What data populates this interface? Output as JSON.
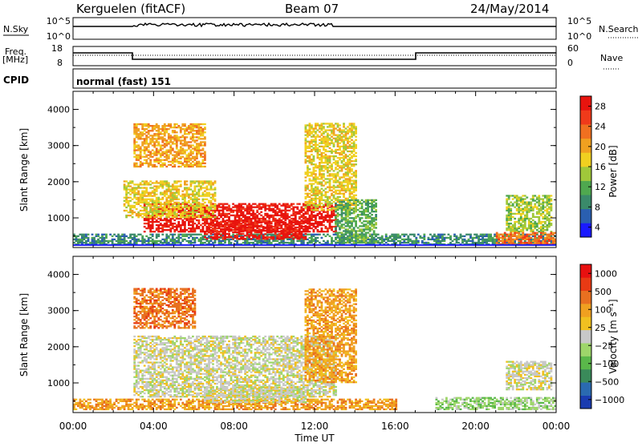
{
  "header": {
    "station": "Kerguelen (fitACF)",
    "beam": "Beam 07",
    "date": "24/May/2014"
  },
  "strip_panels": {
    "nsky_label": "N.Sky",
    "nsky_ticks": [
      "10^5",
      "10^0"
    ],
    "nsearch_label": "N.Search",
    "nsearch_ticks": [
      "10^5",
      "10^0"
    ],
    "freq_label_1": "Freq.",
    "freq_label_2": "[MHz]",
    "freq_ticks": [
      "18",
      "8"
    ],
    "nave_label": "Nave",
    "nave_ticks": [
      "60",
      "0"
    ],
    "cpid_label": "CPID",
    "cpid_value": "normal (fast) 151"
  },
  "colors": {
    "power_scale": [
      "#1a1aff",
      "#2a5fb0",
      "#3a8a6a",
      "#4fa84f",
      "#a0c83a",
      "#f0d020",
      "#f0a020",
      "#f07020",
      "#f03a1a",
      "#e8140e"
    ],
    "velocity_scale": [
      "#1a3cb0",
      "#2a6ab0",
      "#3a8a5a",
      "#5ab84a",
      "#9ed66a",
      "#c8c8c8",
      "#f0c020",
      "#f0a020",
      "#e87020",
      "#e83a14",
      "#e81010"
    ]
  },
  "chart_data": [
    {
      "type": "heatmap",
      "name": "power",
      "ylabel": "Slant Range [km]",
      "xlabel": "Time UT",
      "x_ticks": [
        "00:00",
        "04:00",
        "08:00",
        "12:00",
        "16:00",
        "20:00",
        "00:00"
      ],
      "y_ticks": [
        "1000",
        "2000",
        "3000",
        "4000"
      ],
      "ylim": [
        180,
        4500
      ],
      "xlim": [
        0,
        24
      ],
      "colorbar_label": "Power [dB]",
      "colorbar_ticks": [
        "28",
        "24",
        "20",
        "16",
        "12",
        "8",
        "4"
      ],
      "regions": [
        {
          "t0": 0.0,
          "t1": 24.0,
          "r0": 250,
          "r1": 550,
          "level": 2
        },
        {
          "t0": 3.5,
          "t1": 13.0,
          "r0": 600,
          "r1": 1400,
          "level": 9
        },
        {
          "t0": 6.5,
          "t1": 11.5,
          "r0": 400,
          "r1": 900,
          "level": 9
        },
        {
          "t0": 2.5,
          "t1": 7.0,
          "r0": 1000,
          "r1": 2000,
          "level": 5
        },
        {
          "t0": 3.0,
          "t1": 6.5,
          "r0": 2400,
          "r1": 3600,
          "level": 6
        },
        {
          "t0": 11.5,
          "t1": 14.0,
          "r0": 1200,
          "r1": 3600,
          "level": 5
        },
        {
          "t0": 13.0,
          "t1": 15.0,
          "r0": 300,
          "r1": 1500,
          "level": 3
        },
        {
          "t0": 21.5,
          "t1": 23.8,
          "r0": 600,
          "r1": 1600,
          "level": 4
        },
        {
          "t0": 21.0,
          "t1": 24.0,
          "r0": 250,
          "r1": 600,
          "level": 7
        }
      ]
    },
    {
      "type": "heatmap",
      "name": "velocity",
      "ylabel": "Slant Range [km]",
      "xlabel": "Time UT",
      "x_ticks": [
        "00:00",
        "04:00",
        "08:00",
        "12:00",
        "16:00",
        "20:00",
        "00:00"
      ],
      "y_ticks": [
        "1000",
        "2000",
        "3000",
        "4000"
      ],
      "ylim": [
        180,
        4500
      ],
      "xlim": [
        0,
        24
      ],
      "colorbar_label": "Velocity [m s⁻¹]",
      "colorbar_ticks": [
        "1000",
        "500",
        "100",
        "25",
        "−25",
        "−100",
        "−500",
        "−1000"
      ],
      "regions": [
        {
          "t0": 0.0,
          "t1": 16.0,
          "r0": 250,
          "r1": 550,
          "level": 7
        },
        {
          "t0": 3.0,
          "t1": 13.0,
          "r0": 600,
          "r1": 2300,
          "level": 5
        },
        {
          "t0": 6.5,
          "t1": 11.5,
          "r0": 450,
          "r1": 900,
          "level": 5
        },
        {
          "t0": 3.0,
          "t1": 6.0,
          "r0": 2500,
          "r1": 3600,
          "level": 8
        },
        {
          "t0": 11.5,
          "t1": 14.0,
          "r0": 1000,
          "r1": 3600,
          "level": 7
        },
        {
          "t0": 21.5,
          "t1": 23.8,
          "r0": 800,
          "r1": 1600,
          "level": 5
        },
        {
          "t0": 18.0,
          "t1": 24.0,
          "r0": 250,
          "r1": 600,
          "level": 4
        }
      ]
    }
  ]
}
